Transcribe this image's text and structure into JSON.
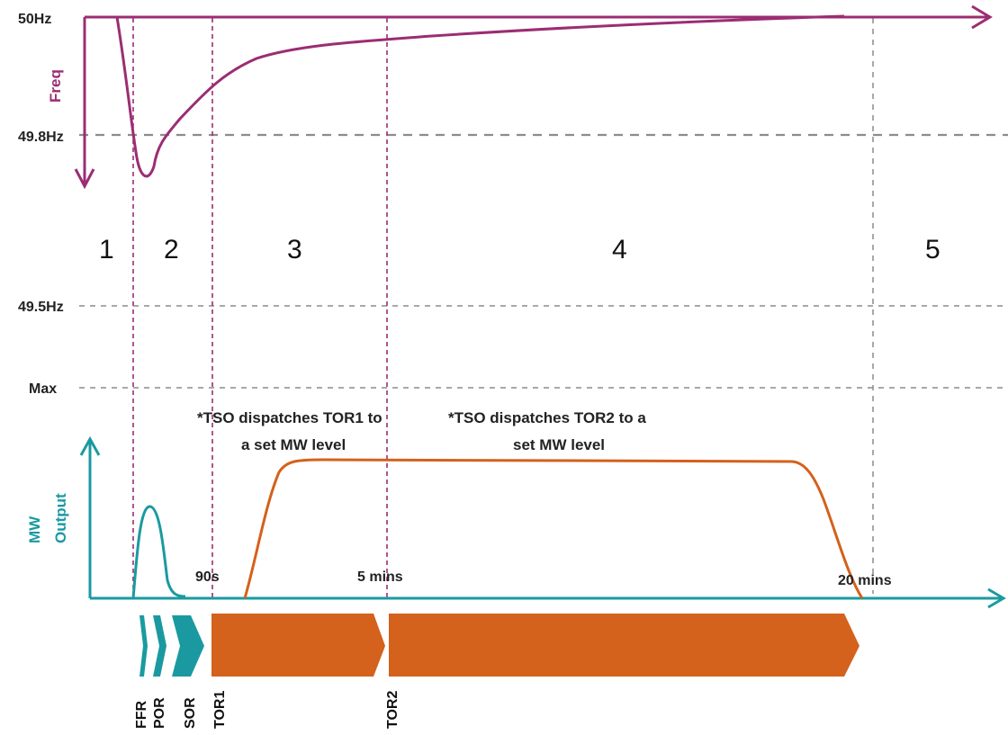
{
  "freq_axis": {
    "label": "Freq",
    "ticks": {
      "hz50": "50Hz",
      "hz49_8": "49.8Hz",
      "hz49_5": "49.5Hz",
      "max": "Max"
    }
  },
  "mw_axis": {
    "label_line1": "MW",
    "label_line2": "Output"
  },
  "phases": [
    "1",
    "2",
    "3",
    "4",
    "5"
  ],
  "time_labels": {
    "t90s": "90s",
    "t5min": "5 mins",
    "t20min": "20 mins"
  },
  "notes": {
    "tor1_line1": "*TSO dispatches TOR1 to",
    "tor1_line2": "a set MW level",
    "tor2_line1": "*TSO dispatches TOR2 to a",
    "tor2_line2": "set MW level"
  },
  "services": [
    "FFR",
    "POR",
    "SOR",
    "TOR1",
    "TOR2"
  ],
  "colors": {
    "frequency": "#9b2d73",
    "mw": "#1a9aa0",
    "tor": "#d4611c",
    "gridline": "#8c8c8c"
  }
}
